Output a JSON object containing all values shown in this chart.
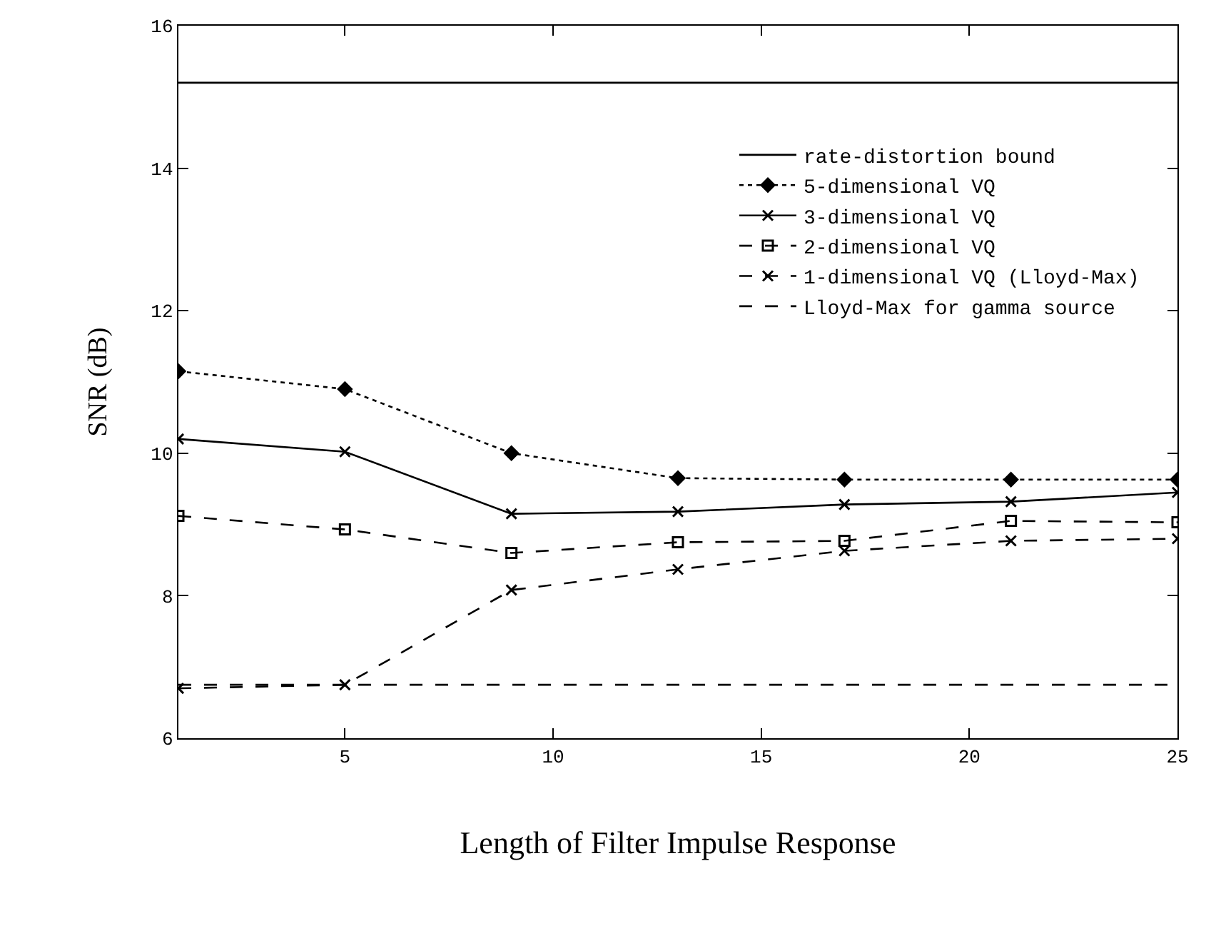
{
  "chart_data": {
    "type": "line",
    "xlabel": "Length of Filter Impulse Response",
    "ylabel": "SNR (dB)",
    "x": [
      1,
      5,
      9,
      13,
      17,
      21,
      25
    ],
    "xlim": [
      1,
      25
    ],
    "xticks": [
      5,
      10,
      15,
      20,
      25
    ],
    "ylim": [
      6,
      16
    ],
    "yticks": [
      6,
      8,
      10,
      12,
      14,
      16
    ],
    "grid": false,
    "legend": "top right",
    "series": [
      {
        "name": "rate-distortion bound",
        "color": "#000000",
        "values": [
          15.2,
          15.2,
          15.2,
          15.2,
          15.2,
          15.2,
          15.2
        ],
        "marker": "none",
        "line_style": "solid"
      },
      {
        "name": "5-dimensional VQ",
        "color": "#000000",
        "values": [
          11.15,
          10.9,
          10.0,
          9.65,
          9.63,
          9.63,
          9.63
        ],
        "marker": "diamond",
        "line_style": "dotted"
      },
      {
        "name": "3-dimensional VQ",
        "color": "#000000",
        "values": [
          10.2,
          10.02,
          9.15,
          9.18,
          9.28,
          9.32,
          9.45
        ],
        "marker": "cross",
        "line_style": "solid"
      },
      {
        "name": "2-dimensional VQ",
        "color": "#000000",
        "values": [
          9.12,
          8.93,
          8.6,
          8.75,
          8.77,
          9.05,
          9.03
        ],
        "marker": "square",
        "line_style": "dashed"
      },
      {
        "name": "1-dimensional VQ (Lloyd-Max)",
        "color": "#000000",
        "values": [
          6.7,
          6.75,
          8.08,
          8.37,
          8.63,
          8.77,
          8.8
        ],
        "marker": "cross",
        "line_style": "dashed"
      },
      {
        "name": "Lloyd-Max for gamma source",
        "color": "#000000",
        "values": [
          6.75,
          6.75,
          6.75,
          6.75,
          6.75,
          6.75,
          6.75
        ],
        "marker": "none",
        "line_style": "dashed"
      }
    ]
  }
}
